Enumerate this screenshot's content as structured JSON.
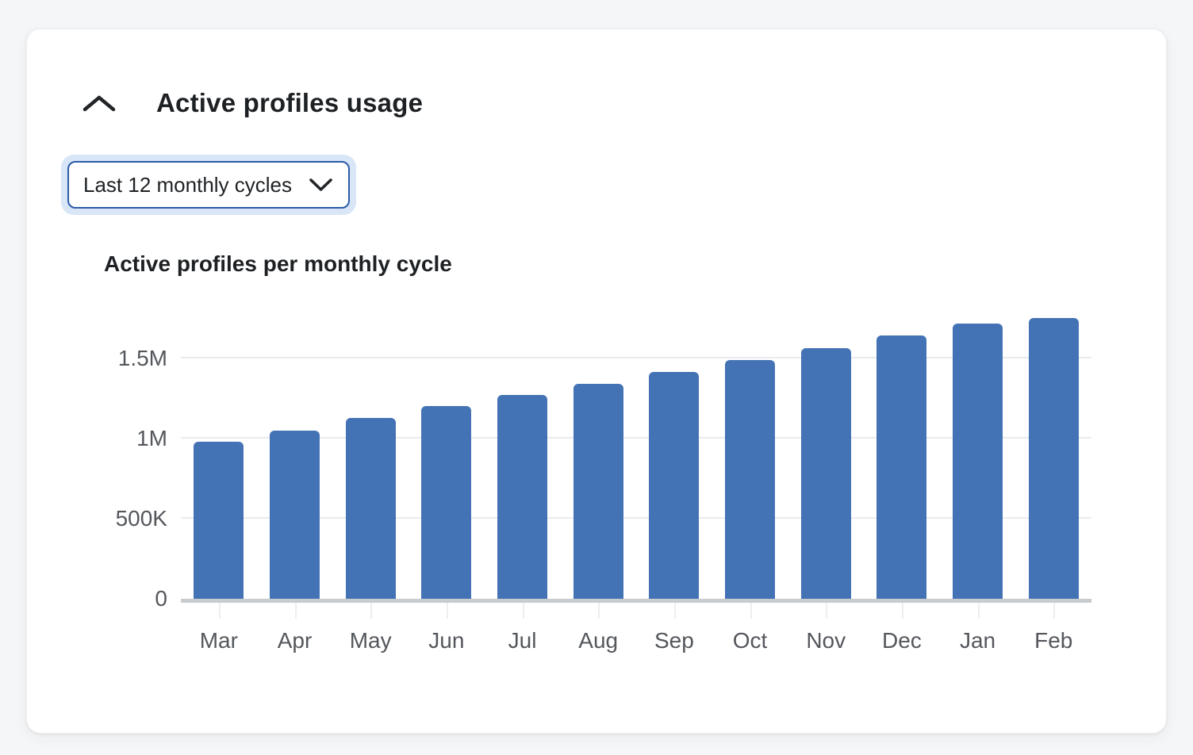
{
  "card": {
    "title": "Active profiles usage",
    "collapse_icon": "chevron-up-icon"
  },
  "filter": {
    "selected_option": "Last 12 monthly cycles",
    "icon": "chevron-down-icon",
    "border_color": "#2b5ca6",
    "focus_ring_color": "#d8e6f7"
  },
  "chart_data": {
    "type": "bar",
    "title": "Active profiles per monthly cycle",
    "categories": [
      "Mar",
      "Apr",
      "May",
      "Jun",
      "Jul",
      "Aug",
      "Sep",
      "Oct",
      "Nov",
      "Dec",
      "Jan",
      "Feb"
    ],
    "values": [
      980000,
      1050000,
      1125000,
      1200000,
      1270000,
      1340000,
      1415000,
      1490000,
      1565000,
      1640000,
      1715000,
      1750000
    ],
    "ytick_values": [
      0,
      500000,
      1000000,
      1500000
    ],
    "ytick_labels": [
      "0",
      "500K",
      "1M",
      "1.5M"
    ],
    "ylim": [
      0,
      1800000
    ],
    "bar_color": "#4473b5",
    "grid": true,
    "legend": false,
    "xlabel": "",
    "ylabel": ""
  }
}
